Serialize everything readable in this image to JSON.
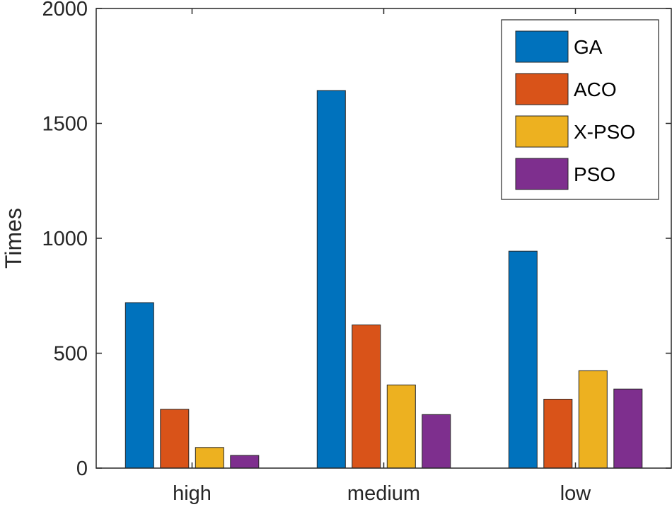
{
  "chart_data": {
    "type": "bar",
    "title": "",
    "xlabel": "",
    "ylabel": "Times",
    "ylim": [
      0,
      2000
    ],
    "yticks": [
      0,
      500,
      1000,
      1500,
      2000
    ],
    "categories": [
      "high",
      "medium",
      "low"
    ],
    "series": [
      {
        "name": "GA",
        "color": "#0072BD",
        "values": [
          720,
          1643,
          944
        ]
      },
      {
        "name": "ACO",
        "color": "#D95319",
        "values": [
          256,
          623,
          300
        ]
      },
      {
        "name": "X-PSO",
        "color": "#EDB120",
        "values": [
          90,
          362,
          424
        ]
      },
      {
        "name": "PSO",
        "color": "#7E2F8E",
        "values": [
          55,
          233,
          344
        ]
      }
    ],
    "grid": false,
    "legend": "top-right"
  }
}
